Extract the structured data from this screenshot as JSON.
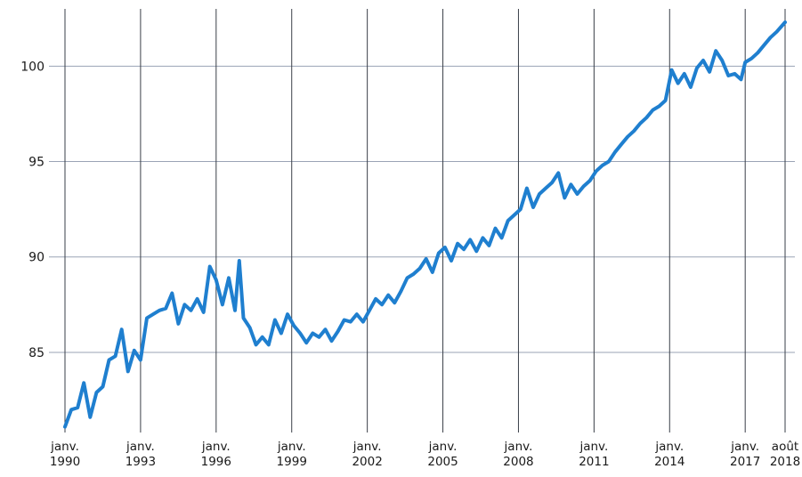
{
  "chart_data": {
    "type": "line",
    "title": "",
    "xlabel": "",
    "ylabel": "",
    "grid": true,
    "ylim": [
      80.8,
      103
    ],
    "y_ticks": [
      85,
      90,
      95,
      100
    ],
    "x_ticks": [
      {
        "date": "1990-01",
        "line1": "janv.",
        "line2": "1990"
      },
      {
        "date": "1993-01",
        "line1": "janv.",
        "line2": "1993"
      },
      {
        "date": "1996-01",
        "line1": "janv.",
        "line2": "1996"
      },
      {
        "date": "1999-01",
        "line1": "janv.",
        "line2": "1999"
      },
      {
        "date": "2002-01",
        "line1": "janv.",
        "line2": "2002"
      },
      {
        "date": "2005-01",
        "line1": "janv.",
        "line2": "2005"
      },
      {
        "date": "2008-01",
        "line1": "janv.",
        "line2": "2008"
      },
      {
        "date": "2011-01",
        "line1": "janv.",
        "line2": "2011"
      },
      {
        "date": "2014-01",
        "line1": "janv.",
        "line2": "2014"
      },
      {
        "date": "2017-01",
        "line1": "janv.",
        "line2": "2017"
      },
      {
        "date": "2018-08",
        "line1": "août",
        "line2": "2018"
      }
    ],
    "series": [
      {
        "color": "#1f7fcf",
        "points": [
          [
            "1990-01",
            81.1
          ],
          [
            "1990-04",
            82.0
          ],
          [
            "1990-07",
            82.1
          ],
          [
            "1990-10",
            83.4
          ],
          [
            "1991-01",
            81.6
          ],
          [
            "1991-04",
            82.9
          ],
          [
            "1991-07",
            83.2
          ],
          [
            "1991-10",
            84.6
          ],
          [
            "1992-01",
            84.8
          ],
          [
            "1992-04",
            86.2
          ],
          [
            "1992-07",
            84.0
          ],
          [
            "1992-10",
            85.1
          ],
          [
            "1993-01",
            84.6
          ],
          [
            "1993-04",
            86.8
          ],
          [
            "1993-07",
            87.0
          ],
          [
            "1993-10",
            87.2
          ],
          [
            "1994-01",
            87.3
          ],
          [
            "1994-04",
            88.1
          ],
          [
            "1994-07",
            86.5
          ],
          [
            "1994-10",
            87.5
          ],
          [
            "1995-01",
            87.2
          ],
          [
            "1995-04",
            87.8
          ],
          [
            "1995-07",
            87.1
          ],
          [
            "1995-10",
            89.5
          ],
          [
            "1996-01",
            88.8
          ],
          [
            "1996-04",
            87.5
          ],
          [
            "1996-07",
            88.9
          ],
          [
            "1996-10",
            87.2
          ],
          [
            "1996-12",
            89.8
          ],
          [
            "1997-02",
            86.8
          ],
          [
            "1997-05",
            86.3
          ],
          [
            "1997-08",
            85.4
          ],
          [
            "1997-11",
            85.8
          ],
          [
            "1998-02",
            85.4
          ],
          [
            "1998-05",
            86.7
          ],
          [
            "1998-08",
            86.0
          ],
          [
            "1998-11",
            87.0
          ],
          [
            "1999-02",
            86.4
          ],
          [
            "1999-05",
            86.0
          ],
          [
            "1999-08",
            85.5
          ],
          [
            "1999-11",
            86.0
          ],
          [
            "2000-02",
            85.8
          ],
          [
            "2000-05",
            86.2
          ],
          [
            "2000-08",
            85.6
          ],
          [
            "2000-11",
            86.1
          ],
          [
            "2001-02",
            86.7
          ],
          [
            "2001-05",
            86.6
          ],
          [
            "2001-08",
            87.0
          ],
          [
            "2001-11",
            86.6
          ],
          [
            "2002-02",
            87.2
          ],
          [
            "2002-05",
            87.8
          ],
          [
            "2002-08",
            87.5
          ],
          [
            "2002-11",
            88.0
          ],
          [
            "2003-02",
            87.6
          ],
          [
            "2003-05",
            88.2
          ],
          [
            "2003-08",
            88.9
          ],
          [
            "2003-11",
            89.1
          ],
          [
            "2004-02",
            89.4
          ],
          [
            "2004-05",
            89.9
          ],
          [
            "2004-08",
            89.2
          ],
          [
            "2004-11",
            90.2
          ],
          [
            "2005-02",
            90.5
          ],
          [
            "2005-05",
            89.8
          ],
          [
            "2005-08",
            90.7
          ],
          [
            "2005-11",
            90.4
          ],
          [
            "2006-02",
            90.9
          ],
          [
            "2006-05",
            90.3
          ],
          [
            "2006-08",
            91.0
          ],
          [
            "2006-11",
            90.6
          ],
          [
            "2007-02",
            91.5
          ],
          [
            "2007-05",
            91.0
          ],
          [
            "2007-08",
            91.9
          ],
          [
            "2007-11",
            92.2
          ],
          [
            "2008-02",
            92.5
          ],
          [
            "2008-05",
            93.6
          ],
          [
            "2008-08",
            92.6
          ],
          [
            "2008-11",
            93.3
          ],
          [
            "2009-02",
            93.6
          ],
          [
            "2009-05",
            93.9
          ],
          [
            "2009-08",
            94.4
          ],
          [
            "2009-11",
            93.1
          ],
          [
            "2010-02",
            93.8
          ],
          [
            "2010-05",
            93.3
          ],
          [
            "2010-08",
            93.7
          ],
          [
            "2010-11",
            94.0
          ],
          [
            "2011-02",
            94.5
          ],
          [
            "2011-05",
            94.8
          ],
          [
            "2011-08",
            95.0
          ],
          [
            "2011-11",
            95.5
          ],
          [
            "2012-02",
            95.9
          ],
          [
            "2012-05",
            96.3
          ],
          [
            "2012-08",
            96.6
          ],
          [
            "2012-11",
            97.0
          ],
          [
            "2013-02",
            97.3
          ],
          [
            "2013-05",
            97.7
          ],
          [
            "2013-08",
            97.9
          ],
          [
            "2013-11",
            98.2
          ],
          [
            "2014-02",
            99.8
          ],
          [
            "2014-05",
            99.1
          ],
          [
            "2014-08",
            99.6
          ],
          [
            "2014-11",
            98.9
          ],
          [
            "2015-02",
            99.9
          ],
          [
            "2015-05",
            100.3
          ],
          [
            "2015-08",
            99.7
          ],
          [
            "2015-11",
            100.8
          ],
          [
            "2016-02",
            100.3
          ],
          [
            "2016-05",
            99.5
          ],
          [
            "2016-08",
            99.6
          ],
          [
            "2016-11",
            99.3
          ],
          [
            "2017-01",
            100.2
          ],
          [
            "2017-04",
            100.4
          ],
          [
            "2017-07",
            100.7
          ],
          [
            "2017-10",
            101.1
          ],
          [
            "2018-01",
            101.5
          ],
          [
            "2018-04",
            101.8
          ],
          [
            "2018-08",
            102.3
          ]
        ]
      }
    ]
  }
}
